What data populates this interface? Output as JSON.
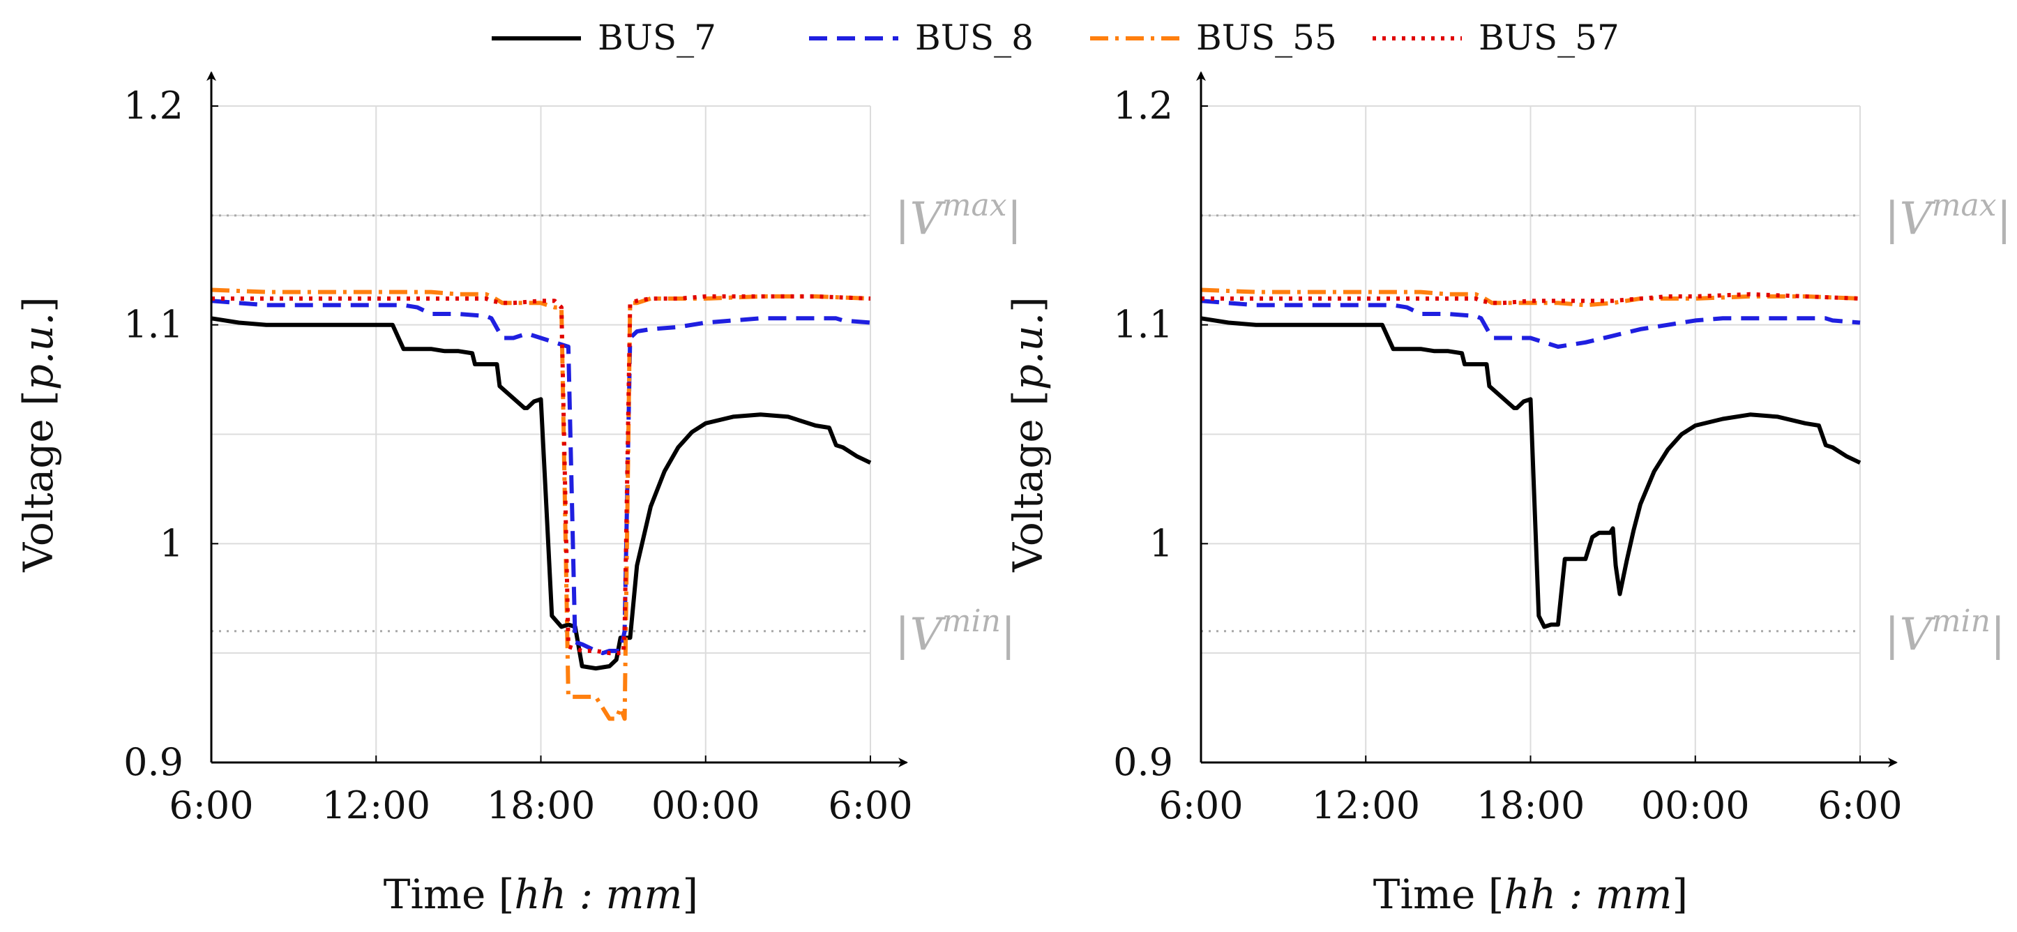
{
  "chart_data": {
    "legend": [
      {
        "name": "BUS_7",
        "color": "#000000",
        "style": "solid"
      },
      {
        "name": "BUS_8",
        "color": "#1f1fe0",
        "style": "dashed"
      },
      {
        "name": "BUS_55",
        "color": "#ff7f0e",
        "style": "dashdot"
      },
      {
        "name": "BUS_57",
        "color": "#e00000",
        "style": "dotted"
      }
    ],
    "charts": [
      {
        "type": "line",
        "xlabel": "Time [hh : mm]",
        "ylabel": "Voltage [p.u.]",
        "xlim": [
          0,
          24
        ],
        "ylim": [
          0.9,
          1.2
        ],
        "x_ticks": [
          {
            "value": 0,
            "label": "6:00"
          },
          {
            "value": 6,
            "label": "12:00"
          },
          {
            "value": 12,
            "label": "18:00"
          },
          {
            "value": 18,
            "label": "00:00"
          },
          {
            "value": 24,
            "label": "6:00"
          }
        ],
        "y_ticks": [
          {
            "value": 0.9,
            "label": "0.9"
          },
          {
            "value": 1.0,
            "label": "1"
          },
          {
            "value": 1.1,
            "label": "1.1"
          },
          {
            "value": 1.2,
            "label": "1.2"
          }
        ],
        "x_grid": [
          0,
          6,
          12,
          18,
          24
        ],
        "y_grid": [
          0.95,
          1.0,
          1.05,
          1.1,
          1.15,
          1.2
        ],
        "limits": [
          {
            "value": 1.15,
            "label_base": "|V",
            "label_sup": "max",
            "label_end": "|"
          },
          {
            "value": 0.96,
            "label_base": "|V",
            "label_sup": "min",
            "label_end": "|"
          }
        ],
        "series": [
          {
            "name": "BUS_7",
            "x": [
              0,
              1,
              2,
              3,
              4,
              5,
              6,
              6.6,
              7,
              7.5,
              8,
              8.5,
              9,
              9.5,
              9.6,
              10.4,
              10.5,
              11.4,
              11.5,
              11.75,
              12,
              12.25,
              12.4,
              12.75,
              13,
              13.25,
              13.5,
              14,
              14.5,
              14.75,
              14.9,
              15.25,
              15.5,
              16,
              16.5,
              17,
              17.5,
              18,
              19,
              20,
              21,
              22,
              22.5,
              22.75,
              23,
              23.5,
              24
            ],
            "y": [
              1.103,
              1.101,
              1.1,
              1.1,
              1.1,
              1.1,
              1.1,
              1.1,
              1.089,
              1.089,
              1.089,
              1.088,
              1.088,
              1.087,
              1.082,
              1.082,
              1.072,
              1.062,
              1.062,
              1.065,
              1.066,
              1.005,
              0.967,
              0.962,
              0.963,
              0.962,
              0.944,
              0.943,
              0.944,
              0.947,
              0.957,
              0.957,
              0.99,
              1.017,
              1.033,
              1.044,
              1.051,
              1.055,
              1.058,
              1.059,
              1.058,
              1.054,
              1.053,
              1.045,
              1.044,
              1.04,
              1.037
            ]
          },
          {
            "name": "BUS_8",
            "x": [
              0,
              2,
              4,
              6,
              7,
              7.5,
              8,
              9,
              10,
              10,
              10.2,
              10.6,
              11,
              11.5,
              12,
              12.5,
              13,
              13.25,
              13.5,
              14,
              14.25,
              14.5,
              14.9,
              15.05,
              15.25,
              15.5,
              16,
              17,
              18,
              19,
              20,
              21,
              22,
              22.75,
              23,
              24
            ],
            "y": [
              1.111,
              1.109,
              1.109,
              1.109,
              1.109,
              1.108,
              1.105,
              1.105,
              1.104,
              1.104,
              1.103,
              1.094,
              1.094,
              1.096,
              1.094,
              1.092,
              1.09,
              0.955,
              0.954,
              0.951,
              0.95,
              0.951,
              0.951,
              0.96,
              1.094,
              1.097,
              1.098,
              1.099,
              1.101,
              1.102,
              1.103,
              1.103,
              1.103,
              1.103,
              1.102,
              1.101
            ]
          },
          {
            "name": "BUS_55",
            "x": [
              0,
              2,
              4,
              6,
              8,
              9,
              10,
              10.2,
              10.6,
              11,
              12,
              12.5,
              12.75,
              13,
              13.25,
              13.5,
              14,
              14.5,
              14.75,
              14.9,
              15.05,
              15.25,
              15.5,
              16,
              17,
              18,
              20,
              22,
              24
            ],
            "y": [
              1.116,
              1.115,
              1.115,
              1.115,
              1.115,
              1.114,
              1.114,
              1.113,
              1.11,
              1.11,
              1.11,
              1.108,
              1.108,
              0.93,
              0.93,
              0.93,
              0.93,
              0.92,
              0.92,
              0.925,
              0.92,
              1.11,
              1.11,
              1.112,
              1.112,
              1.112,
              1.113,
              1.113,
              1.112
            ]
          },
          {
            "name": "BUS_57",
            "x": [
              0,
              2,
              4,
              6,
              8,
              10,
              10.2,
              10.6,
              11,
              12,
              12.5,
              12.75,
              13,
              13.5,
              14,
              14.5,
              15,
              15.05,
              15.25,
              15.5,
              16,
              17,
              18,
              20,
              22,
              24
            ],
            "y": [
              1.112,
              1.112,
              1.112,
              1.112,
              1.112,
              1.112,
              1.111,
              1.11,
              1.11,
              1.111,
              1.111,
              1.108,
              0.953,
              0.951,
              0.951,
              0.95,
              0.95,
              0.96,
              1.11,
              1.111,
              1.112,
              1.112,
              1.113,
              1.113,
              1.113,
              1.112
            ]
          }
        ]
      },
      {
        "type": "line",
        "xlabel": "Time [hh : mm]",
        "ylabel": "Voltage [p.u.]",
        "xlim": [
          0,
          24
        ],
        "ylim": [
          0.9,
          1.2
        ],
        "x_ticks": [
          {
            "value": 0,
            "label": "6:00"
          },
          {
            "value": 6,
            "label": "12:00"
          },
          {
            "value": 12,
            "label": "18:00"
          },
          {
            "value": 18,
            "label": "00:00"
          },
          {
            "value": 24,
            "label": "6:00"
          }
        ],
        "y_ticks": [
          {
            "value": 0.9,
            "label": "0.9"
          },
          {
            "value": 1.0,
            "label": "1"
          },
          {
            "value": 1.1,
            "label": "1.1"
          },
          {
            "value": 1.2,
            "label": "1.2"
          }
        ],
        "x_grid": [
          0,
          6,
          12,
          18,
          24
        ],
        "y_grid": [
          0.95,
          1.0,
          1.05,
          1.1,
          1.15,
          1.2
        ],
        "limits": [
          {
            "value": 1.15,
            "label_base": "|V",
            "label_sup": "max",
            "label_end": "|"
          },
          {
            "value": 0.96,
            "label_base": "|V",
            "label_sup": "min",
            "label_end": "|"
          }
        ],
        "series": [
          {
            "name": "BUS_7",
            "x": [
              0,
              1,
              2,
              3,
              4,
              5,
              6,
              6.6,
              7,
              7.5,
              8,
              8.5,
              9,
              9.5,
              9.6,
              10.4,
              10.5,
              11.4,
              11.5,
              11.75,
              12,
              12.3,
              12.5,
              12.75,
              13,
              13.25,
              13.5,
              13.75,
              14,
              14.25,
              14.5,
              14.9,
              15,
              15.1,
              15.25,
              15.5,
              15.75,
              16,
              16.5,
              17,
              17.5,
              18,
              19,
              20,
              21,
              22,
              22.5,
              22.75,
              23,
              23.5,
              24
            ],
            "y": [
              1.103,
              1.101,
              1.1,
              1.1,
              1.1,
              1.1,
              1.1,
              1.1,
              1.089,
              1.089,
              1.089,
              1.088,
              1.088,
              1.087,
              1.082,
              1.082,
              1.072,
              1.062,
              1.062,
              1.065,
              1.066,
              0.967,
              0.962,
              0.963,
              0.963,
              0.993,
              0.993,
              0.993,
              0.993,
              1.003,
              1.005,
              1.005,
              1.007,
              0.99,
              0.977,
              0.992,
              1.006,
              1.018,
              1.033,
              1.043,
              1.05,
              1.054,
              1.057,
              1.059,
              1.058,
              1.055,
              1.054,
              1.045,
              1.044,
              1.04,
              1.037
            ]
          },
          {
            "name": "BUS_8",
            "x": [
              0,
              2,
              4,
              6,
              7,
              7.5,
              8,
              9,
              10,
              10,
              10.2,
              10.6,
              11,
              12,
              13,
              14,
              15,
              16,
              17,
              18,
              19,
              20,
              21,
              22,
              22.75,
              23,
              24
            ],
            "y": [
              1.111,
              1.109,
              1.109,
              1.109,
              1.109,
              1.108,
              1.105,
              1.105,
              1.104,
              1.104,
              1.103,
              1.094,
              1.094,
              1.094,
              1.09,
              1.092,
              1.095,
              1.098,
              1.1,
              1.102,
              1.103,
              1.103,
              1.103,
              1.103,
              1.103,
              1.102,
              1.101
            ]
          },
          {
            "name": "BUS_55",
            "x": [
              0,
              2,
              4,
              6,
              8,
              9,
              10,
              10.2,
              10.6,
              11,
              12,
              13,
              14,
              15,
              16,
              17,
              18,
              20,
              22,
              24
            ],
            "y": [
              1.116,
              1.115,
              1.115,
              1.115,
              1.115,
              1.114,
              1.114,
              1.113,
              1.11,
              1.11,
              1.11,
              1.11,
              1.109,
              1.11,
              1.112,
              1.112,
              1.112,
              1.113,
              1.113,
              1.112
            ]
          },
          {
            "name": "BUS_57",
            "x": [
              0,
              2,
              4,
              6,
              8,
              10,
              10.2,
              10.6,
              11,
              12,
              13,
              14,
              15,
              16,
              17,
              18,
              20,
              22,
              24
            ],
            "y": [
              1.112,
              1.112,
              1.112,
              1.112,
              1.112,
              1.112,
              1.111,
              1.11,
              1.11,
              1.111,
              1.111,
              1.111,
              1.111,
              1.112,
              1.113,
              1.113,
              1.114,
              1.113,
              1.112
            ]
          }
        ]
      }
    ]
  }
}
